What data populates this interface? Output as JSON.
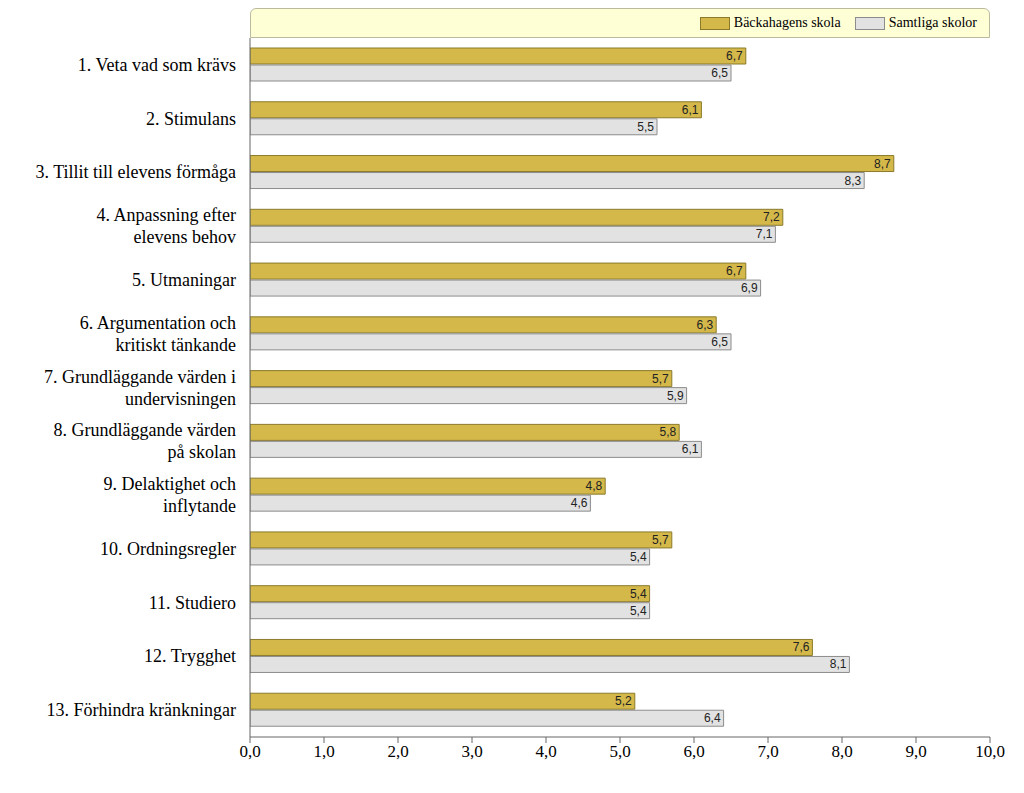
{
  "chart_data": {
    "type": "bar",
    "orientation": "horizontal",
    "categories": [
      "1. Veta vad som krävs",
      "2. Stimulans",
      "3. Tillit till elevens förmåga",
      "4. Anpassning efter\nelevens behov",
      "5. Utmaningar",
      "6. Argumentation och\nkritiskt tänkande",
      "7. Grundläggande värden i\nundervisningen",
      "8. Grundläggande värden\npå skolan",
      "9. Delaktighet och\ninflytande",
      "10. Ordningsregler",
      "11. Studiero",
      "12. Trygghet",
      "13. Förhindra kränkningar"
    ],
    "series": [
      {
        "name": "Bäckahagens skola",
        "color": "#D4B84A",
        "values": [
          6.7,
          6.1,
          8.7,
          7.2,
          6.7,
          6.3,
          5.7,
          5.8,
          4.8,
          5.7,
          5.4,
          7.6,
          5.2
        ],
        "value_labels": [
          "6,7",
          "6,1",
          "8,7",
          "7,2",
          "6,7",
          "6,3",
          "5,7",
          "5,8",
          "4,8",
          "5,7",
          "5,4",
          "7,6",
          "5,2"
        ]
      },
      {
        "name": "Samtliga skolor",
        "color": "#E2E2E2",
        "values": [
          6.5,
          5.5,
          8.3,
          7.1,
          6.9,
          6.5,
          5.9,
          6.1,
          4.6,
          5.4,
          5.4,
          8.1,
          6.4
        ],
        "value_labels": [
          "6,5",
          "5,5",
          "8,3",
          "7,1",
          "6,9",
          "6,5",
          "5,9",
          "6,1",
          "4,6",
          "5,4",
          "5,4",
          "8,1",
          "6,4"
        ]
      }
    ],
    "xlim": [
      0,
      10
    ],
    "xticks": [
      {
        "value": 0,
        "label": "0,0"
      },
      {
        "value": 1,
        "label": "1,0"
      },
      {
        "value": 2,
        "label": "2,0"
      },
      {
        "value": 3,
        "label": "3,0"
      },
      {
        "value": 4,
        "label": "4,0"
      },
      {
        "value": 5,
        "label": "5,0"
      },
      {
        "value": 6,
        "label": "6,0"
      },
      {
        "value": 7,
        "label": "7,0"
      },
      {
        "value": 8,
        "label": "8,0"
      },
      {
        "value": 9,
        "label": "9,0"
      },
      {
        "value": 10,
        "label": "10,0"
      }
    ],
    "grid": false,
    "legend": "top-right",
    "data_labels": true
  }
}
